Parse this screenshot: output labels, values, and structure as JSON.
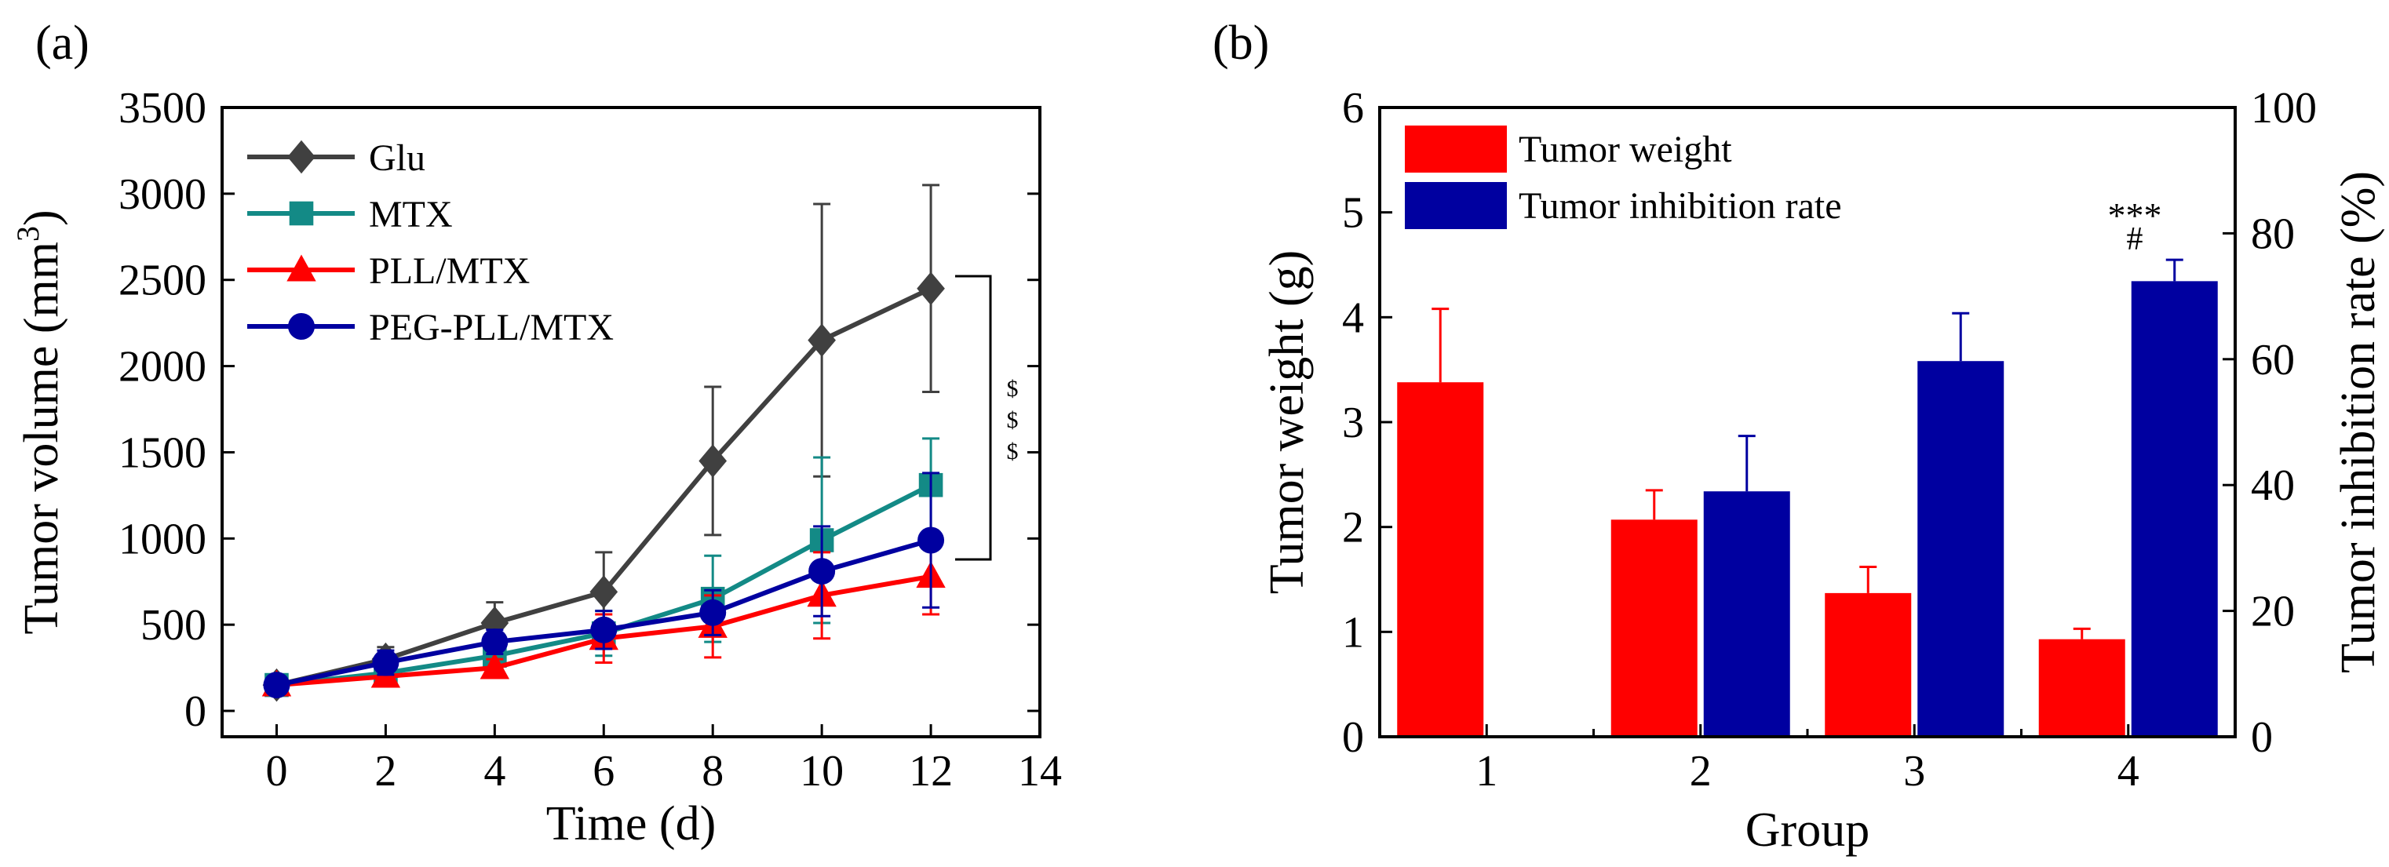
{
  "chart_data": [
    {
      "type": "line",
      "panel_label": "(a)",
      "xlabel": "Time (d)",
      "ylabel_main": "Tumor volume (mm",
      "ylabel_sup": "3",
      "ylabel_close": ")",
      "xlim": [
        -1,
        14
      ],
      "ylim": [
        -150,
        3500
      ],
      "xticks": [
        0,
        2,
        4,
        6,
        8,
        10,
        12,
        14
      ],
      "yticks": [
        0,
        500,
        1000,
        1500,
        2000,
        2500,
        3000,
        3500
      ],
      "x": [
        0,
        2,
        4,
        6,
        8,
        10,
        12
      ],
      "series": [
        {
          "name": "Glu",
          "color": "#404040",
          "marker": "diamond",
          "values": [
            150,
            300,
            510,
            690,
            1450,
            2150,
            2450
          ],
          "errors": [
            40,
            70,
            120,
            230,
            430,
            790,
            600
          ]
        },
        {
          "name": "MTX",
          "color": "#138a86",
          "marker": "square",
          "values": [
            150,
            220,
            320,
            450,
            650,
            990,
            1310
          ],
          "errors": [
            40,
            50,
            70,
            130,
            250,
            480,
            270
          ]
        },
        {
          "name": "PLL/MTX",
          "color": "#ff0000",
          "marker": "triangle",
          "values": [
            150,
            200,
            250,
            420,
            490,
            670,
            780
          ],
          "errors": [
            40,
            40,
            50,
            140,
            180,
            250,
            220
          ]
        },
        {
          "name": "PEG-PLL/MTX",
          "color": "#0000a0",
          "marker": "circle",
          "values": [
            150,
            280,
            400,
            470,
            570,
            810,
            990
          ],
          "errors": [
            40,
            70,
            70,
            110,
            130,
            260,
            390
          ]
        }
      ],
      "significance": [
        "$",
        "$",
        "$"
      ]
    },
    {
      "type": "bar",
      "panel_label": "(b)",
      "xlabel": "Group",
      "ylabel": "Tumor weight (g)",
      "ylabel_right": "Tumor inhibition rate (%)",
      "categories": [
        "1",
        "2",
        "3",
        "4"
      ],
      "ylim": [
        0,
        6
      ],
      "ylim_right": [
        0,
        100
      ],
      "yticks": [
        0,
        1,
        2,
        3,
        4,
        5,
        6
      ],
      "yticks_right": [
        0,
        20,
        40,
        60,
        80,
        100
      ],
      "series": [
        {
          "name": "Tumor weight",
          "color": "#ff0000",
          "axis": "left",
          "values": [
            3.38,
            2.07,
            1.37,
            0.93
          ],
          "errors": [
            0.7,
            0.28,
            0.25,
            0.1
          ]
        },
        {
          "name": "Tumor inhibition rate",
          "color": "#0000a0",
          "axis": "right",
          "values": [
            0,
            39,
            59.7,
            72.4
          ],
          "errors": [
            0,
            8.8,
            7.6,
            3.4
          ]
        }
      ],
      "annotations": {
        "sig_top": "***",
        "sig_hash": "#"
      }
    }
  ]
}
